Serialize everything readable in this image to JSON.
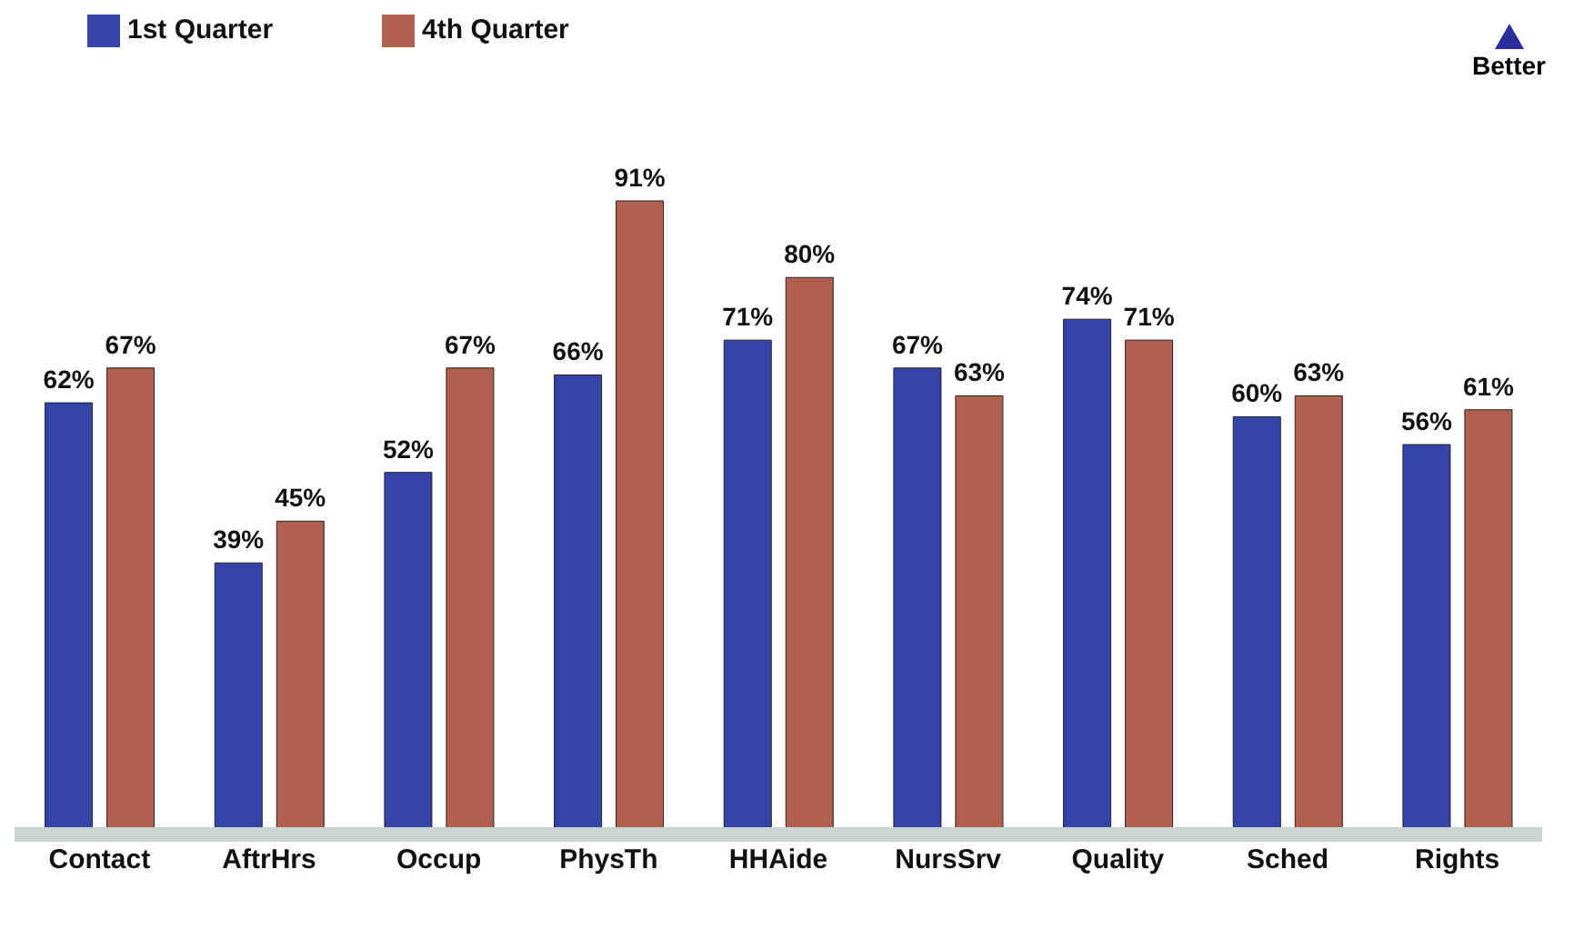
{
  "chart_data": {
    "type": "bar",
    "categories": [
      "Contact",
      "AftrHrs",
      "Occup",
      "PhysTh",
      "HHAide",
      "NursSrv",
      "Quality",
      "Sched",
      "Rights"
    ],
    "series": [
      {
        "name": "1st Quarter",
        "color": "#3444a8",
        "values": [
          62,
          39,
          52,
          66,
          71,
          67,
          74,
          60,
          56
        ],
        "value_labels": [
          "62%",
          "39%",
          "52%",
          "66%",
          "71%",
          "67%",
          "74%",
          "60%",
          "56%"
        ]
      },
      {
        "name": "4th Quarter",
        "color": "#b0604c",
        "values": [
          67,
          45,
          67,
          91,
          80,
          63,
          71,
          63,
          61
        ],
        "value_labels": [
          "67%",
          "45%",
          "67%",
          "91%",
          "80%",
          "63%",
          "71%",
          "63%",
          "61%"
        ]
      }
    ],
    "tick_labels": "x",
    "legend": "top left",
    "annotations": [
      "Better"
    ]
  }
}
